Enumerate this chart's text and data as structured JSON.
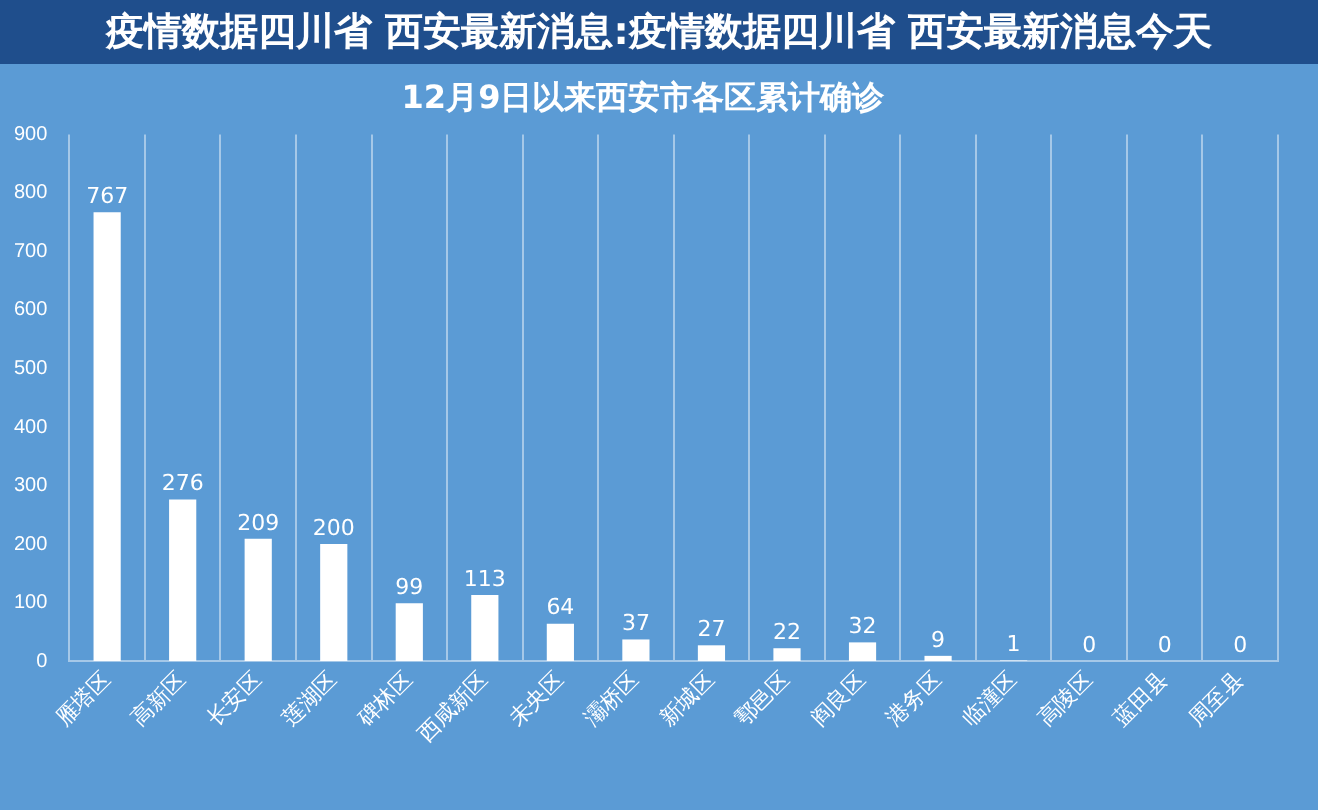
{
  "chart_data": {
    "type": "bar",
    "title": "12月9日以来西安市各区累计确诊",
    "subtitle": "疫情数据四川省 西安最新消息:疫情数据四川省 西安最新消息今天",
    "categories": [
      "雁塔区",
      "高新区",
      "长安区",
      "莲湖区",
      "碑林区",
      "西咸新区",
      "未央区",
      "灞桥区",
      "新城区",
      "鄠邑区",
      "阎良区",
      "港务区",
      "临潼区",
      "高陵区",
      "蓝田县",
      "周至县"
    ],
    "values": [
      767,
      276,
      209,
      200,
      99,
      113,
      64,
      37,
      27,
      22,
      32,
      9,
      1,
      0,
      0,
      0
    ],
    "color": "#ffffff",
    "ylim": [
      0,
      900
    ],
    "yticks": [
      0,
      100,
      200,
      300,
      400,
      500,
      600,
      700,
      800,
      900
    ],
    "grid": "x",
    "data_labels": true,
    "legend": false
  }
}
